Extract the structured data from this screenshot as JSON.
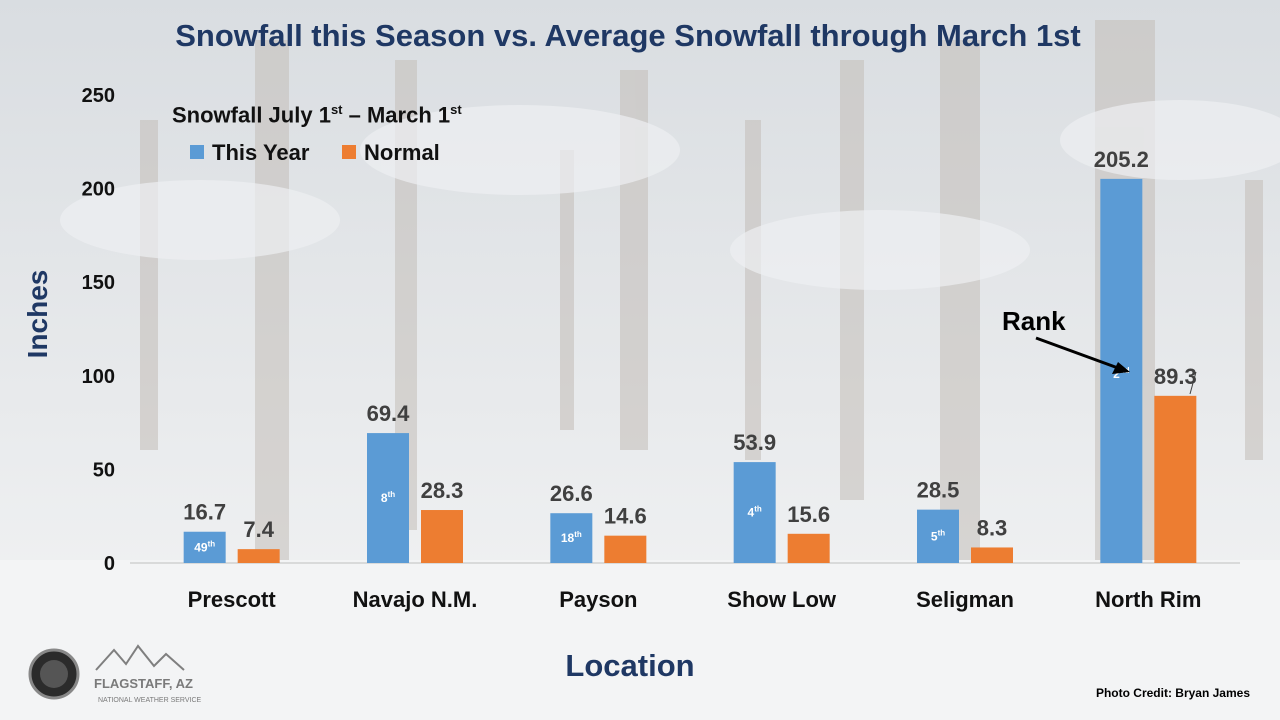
{
  "chart_data": {
    "type": "bar",
    "title": "Snowfall this Season vs. Average Snowfall through March 1st",
    "xlabel": "Location",
    "ylabel": "Inches",
    "ylim": [
      0,
      250
    ],
    "yticks": [
      0,
      50,
      100,
      150,
      200,
      250
    ],
    "categories": [
      "Prescott",
      "Navajo N.M.",
      "Payson",
      "Show Low",
      "Seligman",
      "North Rim"
    ],
    "series": [
      {
        "name": "This Year",
        "color": "#5b9bd5",
        "values": [
          16.7,
          69.4,
          26.6,
          53.9,
          28.5,
          205.2
        ]
      },
      {
        "name": "Normal",
        "color": "#ed7d31",
        "values": [
          7.4,
          28.3,
          14.6,
          15.6,
          8.3,
          89.3
        ]
      }
    ],
    "data_labels": {
      "this_year": [
        "16.7",
        "69.4",
        "26.6",
        "53.9",
        "28.5",
        "205.2"
      ],
      "normal": [
        "7.4",
        "28.3",
        "14.6",
        "15.6",
        "8.3",
        "89.3"
      ]
    },
    "ranks": [
      {
        "num": "49",
        "suffix": "th"
      },
      {
        "num": "8",
        "suffix": "th"
      },
      {
        "num": "18",
        "suffix": "th"
      },
      {
        "num": "4",
        "suffix": "th"
      },
      {
        "num": "5",
        "suffix": "th"
      },
      {
        "num": "2",
        "suffix": "nd"
      }
    ],
    "legend": {
      "title_parts": {
        "a": "Snowfall July 1",
        "a_sup": "st",
        "b": " – March 1",
        "b_sup": "st"
      },
      "placement": "top-left"
    },
    "rank_annotation": "Rank",
    "grid": false
  },
  "footer": {
    "photo_credit": "Photo Credit: Bryan James",
    "logo_text": "FLAGSTAFF, AZ",
    "logo_subtext": "NATIONAL WEATHER SERVICE"
  }
}
